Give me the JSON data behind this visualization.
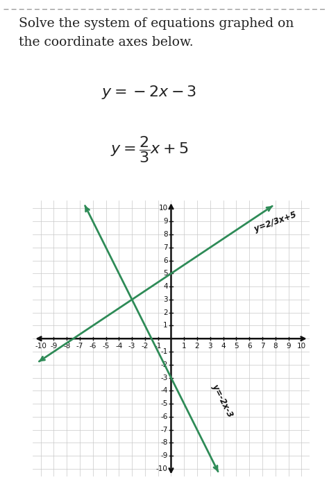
{
  "title_text": "Solve the system of equations graphed on\nthe coordinate axes below.",
  "eq1_latex": "$y = -2x - 3$",
  "eq2_latex": "$y = \\dfrac{2}{3}x + 5$",
  "eq1_label": "y=2/3x+5",
  "eq2_label": "y=-2x-3",
  "line1_slope": -2,
  "line1_intercept": -3,
  "line2_slope": 0.6667,
  "line2_intercept": 5,
  "xmin": -10,
  "xmax": 10,
  "ymin": -10,
  "ymax": 10,
  "line_color": "#2e8b57",
  "grid_color": "#c8c8c8",
  "axis_color": "#111111",
  "background_color": "#ffffff",
  "dashed_border_color": "#999999",
  "title_fontsize": 13.5,
  "eq_fontsize": 16,
  "tick_fontsize": 7.5
}
